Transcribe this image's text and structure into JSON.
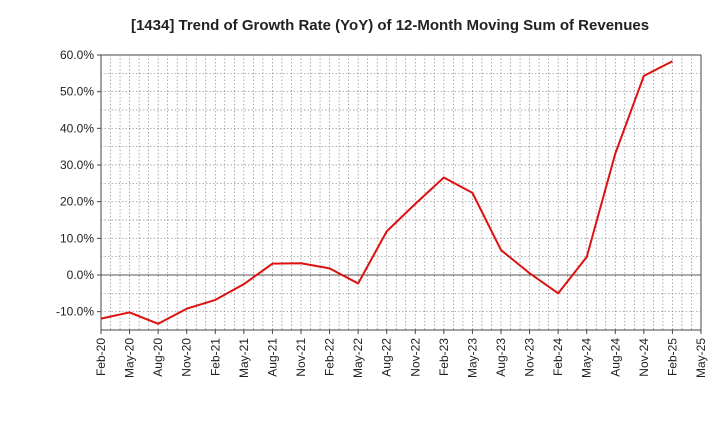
{
  "chart_data": {
    "type": "line",
    "title": "[1434]  Trend of Growth Rate (YoY) of 12-Month Moving Sum of Revenues",
    "xlabel": "",
    "ylabel": "",
    "ylim": [
      -15,
      60
    ],
    "yticks": [
      -10,
      0,
      10,
      20,
      30,
      40,
      50,
      60
    ],
    "ytick_labels": [
      "-10.0%",
      "0.0%",
      "10.0%",
      "20.0%",
      "30.0%",
      "40.0%",
      "50.0%",
      "60.0%"
    ],
    "xtick_labels": [
      "Feb-20",
      "May-20",
      "Aug-20",
      "Nov-20",
      "Feb-21",
      "May-21",
      "Aug-21",
      "Nov-21",
      "Feb-22",
      "May-22",
      "Aug-22",
      "Nov-22",
      "Feb-23",
      "May-23",
      "Aug-23",
      "Nov-23",
      "Feb-24",
      "May-24",
      "Aug-24",
      "Nov-24",
      "Feb-25",
      "May-25"
    ],
    "grid": true,
    "line_color": "#dd1111",
    "series": [
      {
        "x": [
          "Feb-20",
          "May-20",
          "Aug-20",
          "Nov-20",
          "Feb-21",
          "May-21",
          "Aug-21",
          "Nov-21",
          "Feb-22",
          "May-22",
          "Aug-22",
          "Nov-22",
          "Feb-23",
          "May-23",
          "Aug-23",
          "Nov-23",
          "Feb-24",
          "May-24",
          "Aug-24",
          "Nov-24",
          "Feb-25"
        ],
        "values": [
          -11.9,
          -10.2,
          -13.3,
          -9.2,
          -6.8,
          -2.5,
          3.1,
          3.2,
          1.8,
          -2.3,
          11.9,
          19.4,
          26.6,
          22.4,
          6.8,
          0.5,
          -5.0,
          4.9,
          33.1,
          54.3,
          58.3
        ]
      }
    ]
  }
}
